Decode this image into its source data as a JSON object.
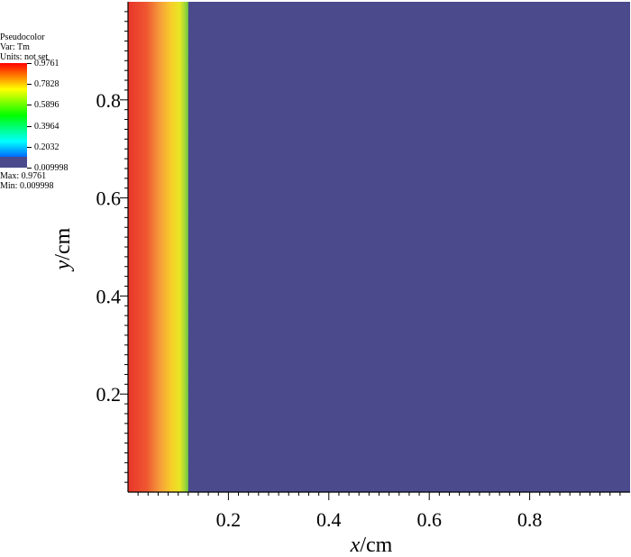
{
  "chart_data": {
    "type": "heatmap",
    "title": "",
    "xlabel": "x/cm",
    "ylabel": "y/cm",
    "x_var": "x",
    "y_var": "y",
    "unit": "/cm",
    "xlim": [
      0,
      1
    ],
    "ylim": [
      0,
      1
    ],
    "xticks": [
      0.2,
      0.4,
      0.6,
      0.8
    ],
    "yticks": [
      0.2,
      0.4,
      0.6,
      0.8
    ],
    "xtick_labels": [
      "0.2",
      "0.4",
      "0.6",
      "0.8"
    ],
    "ytick_labels": [
      "0.2",
      "0.4",
      "0.6",
      "0.8"
    ],
    "field": {
      "description_var": "Tm",
      "profile_x": [
        0.0,
        0.02,
        0.04,
        0.06,
        0.08,
        0.1,
        0.12,
        0.13,
        1.0
      ],
      "profile_value": [
        0.9761,
        0.92,
        0.86,
        0.8,
        0.74,
        0.66,
        0.58,
        0.009998,
        0.009998
      ],
      "uniform_in_y": true,
      "background_value": 0.009998
    },
    "legend": {
      "position": "top-left",
      "lines": [
        "Pseudocolor",
        "Var: Tm",
        "Units: not set"
      ],
      "labels": [
        "0.9761",
        "0.7828",
        "0.5896",
        "0.3964",
        "0.2032",
        "0.009998"
      ],
      "values": [
        0.9761,
        0.7828,
        0.5896,
        0.3964,
        0.2032,
        0.009998
      ],
      "max_label": "Max: 0.9761",
      "min_label": "Min: 0.009998",
      "vmin": 0.009998,
      "vmax": 0.9761,
      "colors": [
        "#ff0000",
        "#ffff00",
        "#00ff00",
        "#00ffff",
        "#0000ff"
      ],
      "low_color": "#4a4a8c"
    },
    "colors": {
      "background_field": "#4a4a8c",
      "red": "#e8352a",
      "orange": "#f59a3a",
      "yellow": "#f5e020",
      "green": "#6cc83c"
    }
  }
}
